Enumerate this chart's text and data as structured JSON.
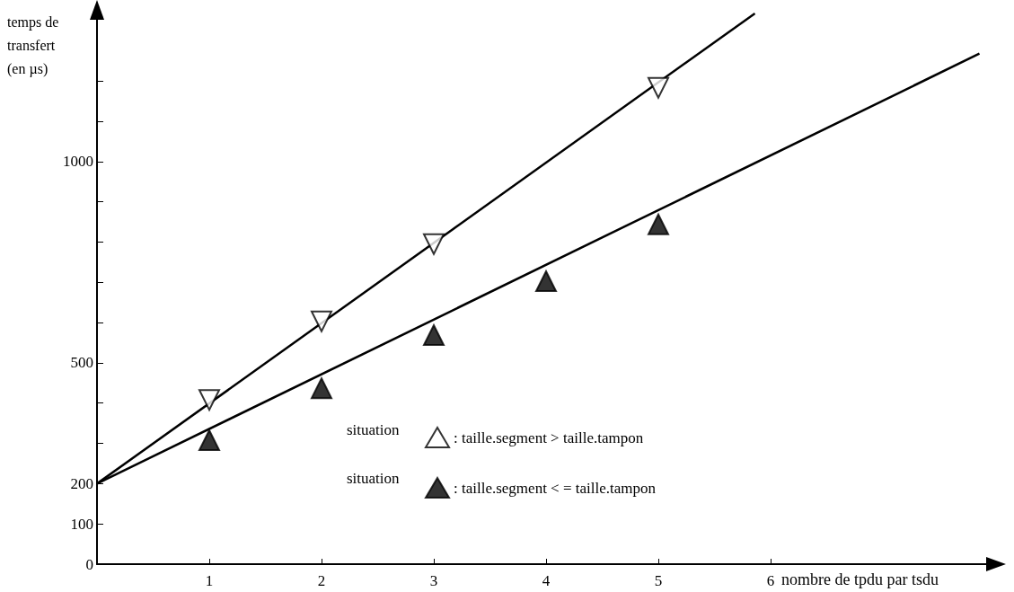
{
  "chart_data": {
    "type": "scatter",
    "xlabel": "nombre de tpdu par tsdu",
    "ylabel": "temps de\ntransfert\n(en µs)",
    "xlim": [
      0,
      8
    ],
    "ylim": [
      0,
      1370
    ],
    "xticks": [
      1,
      2,
      3,
      4,
      5,
      6
    ],
    "yticks": [
      0,
      100,
      200,
      {
        "value": 300,
        "label": null
      },
      {
        "value": 400,
        "label": null
      },
      500,
      {
        "value": 600,
        "label": null
      },
      {
        "value": 700,
        "label": null
      },
      {
        "value": 800,
        "label": null
      },
      {
        "value": 900,
        "label": null
      },
      1000,
      {
        "value": 1100,
        "label": null
      },
      {
        "value": 1200,
        "label": null
      }
    ],
    "grid": false,
    "legend": "right",
    "annotations": [
      "situation",
      "situation"
    ],
    "series": [
      {
        "name": ": taille.segment > taille.tampon",
        "type": "scatter",
        "marker": "triangle-down-open",
        "color": "#000000",
        "x": [
          1,
          2,
          3,
          5
        ],
        "values": [
          408,
          603,
          795,
          1183
        ]
      },
      {
        "name": ": taille.segment < = taille.tampon",
        "type": "scatter",
        "marker": "triangle",
        "color": "#000000",
        "x": [
          1,
          2,
          3,
          4,
          5
        ],
        "values": [
          308,
          437,
          569,
          703,
          844
        ]
      },
      {
        "type": "line",
        "marker": "none",
        "color": "#000000",
        "x": [
          0,
          5.86
        ],
        "values": [
          200,
          1368
        ]
      },
      {
        "type": "line",
        "marker": "none",
        "color": "#000000",
        "x": [
          0,
          7.86
        ],
        "values": [
          200,
          1268
        ]
      }
    ]
  }
}
